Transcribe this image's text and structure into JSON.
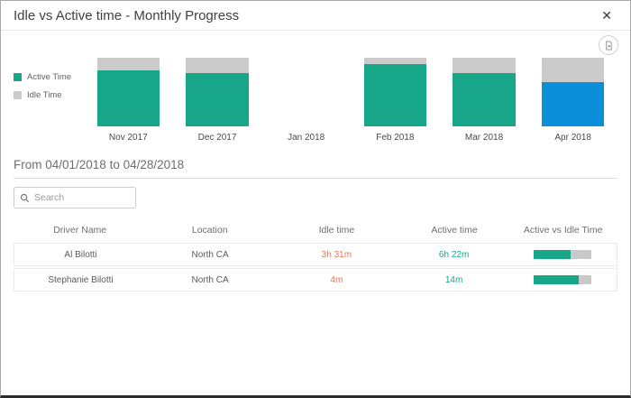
{
  "modal": {
    "title": "Idle vs Active time - Monthly Progress",
    "close_glyph": "✕"
  },
  "colors": {
    "active": "#18a689",
    "idle_gray": "#cbcbcb",
    "highlight_blue": "#0b8fd8",
    "idle_text_orange": "#e0795a"
  },
  "chart_data": {
    "type": "bar",
    "stacked": true,
    "unit": "percent_of_month_total",
    "categories": [
      "Nov 2017",
      "Dec 2017",
      "Jan 2018",
      "Feb 2018",
      "Mar 2018",
      "Apr 2018"
    ],
    "series": [
      {
        "name": "Active Time",
        "color": "#18a689",
        "values": [
          81,
          77,
          0,
          91,
          77,
          64
        ]
      },
      {
        "name": "Idle Time",
        "color": "#cbcbcb",
        "values": [
          19,
          23,
          0,
          9,
          23,
          36
        ]
      }
    ],
    "highlight": {
      "category": "Apr 2018",
      "series": "Active Time",
      "color": "#0b8fd8"
    },
    "ylim": [
      0,
      100
    ],
    "legend_position": "left",
    "legend": [
      "Active Time",
      "Idle Time"
    ],
    "no_data_categories": [
      "Jan 2018"
    ]
  },
  "filter": {
    "date_range": "From 04/01/2018 to 04/28/2018"
  },
  "search": {
    "placeholder": "Search",
    "value": ""
  },
  "table": {
    "columns": [
      "Driver Name",
      "Location",
      "Idle time",
      "Active time",
      "Active vs Idle Time"
    ],
    "rows": [
      {
        "driver": "Al Bilotti",
        "location": "North CA",
        "idle": "3h 31m",
        "active": "6h 22m",
        "active_pct": 64
      },
      {
        "driver": "Stephanie Bilotti",
        "location": "North CA",
        "idle": "4m",
        "active": "14m",
        "active_pct": 78
      }
    ]
  }
}
